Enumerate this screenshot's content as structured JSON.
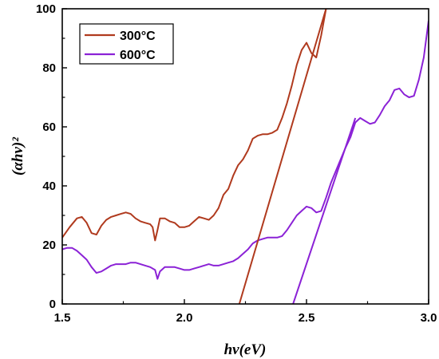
{
  "chart_data": {
    "type": "line",
    "xlabel": "hv(eV)",
    "ylabel": "(αhv)²",
    "xlim": [
      1.5,
      3.0
    ],
    "ylim": [
      0,
      100
    ],
    "x_ticks": [
      "1.5",
      "2.0",
      "2.5",
      "3.0"
    ],
    "y_ticks": [
      "0",
      "20",
      "40",
      "60",
      "80",
      "100"
    ],
    "legend_position": "top-left",
    "grid": false,
    "series": [
      {
        "name": "300°C",
        "color": "#b03a1e",
        "x": [
          1.5,
          1.53,
          1.56,
          1.58,
          1.6,
          1.62,
          1.64,
          1.66,
          1.68,
          1.7,
          1.72,
          1.74,
          1.76,
          1.78,
          1.8,
          1.82,
          1.84,
          1.86,
          1.87,
          1.88,
          1.89,
          1.9,
          1.92,
          1.94,
          1.96,
          1.98,
          2.0,
          2.02,
          2.04,
          2.06,
          2.08,
          2.1,
          2.12,
          2.14,
          2.16,
          2.18,
          2.2,
          2.22,
          2.24,
          2.26,
          2.28,
          2.3,
          2.32,
          2.34,
          2.36,
          2.38,
          2.4,
          2.42,
          2.44,
          2.46,
          2.48,
          2.5,
          2.52,
          2.54,
          2.56,
          2.58
        ],
        "y": [
          22.5,
          26.0,
          29.0,
          29.5,
          27.5,
          24.0,
          23.5,
          26.5,
          28.5,
          29.5,
          30.0,
          30.5,
          31.0,
          30.5,
          29.0,
          28.0,
          27.5,
          27.0,
          26.0,
          21.5,
          25.0,
          29.0,
          29.0,
          28.0,
          27.5,
          26.0,
          26.0,
          26.5,
          28.0,
          29.5,
          29.0,
          28.5,
          30.0,
          32.5,
          37.0,
          39.0,
          43.5,
          47.0,
          49.0,
          52.0,
          56.0,
          57.0,
          57.5,
          57.5,
          58.0,
          59.0,
          63.0,
          68.0,
          74.0,
          81.0,
          86.0,
          88.5,
          85.0,
          83.5,
          91.0,
          100.0
        ]
      },
      {
        "name": "600°C",
        "color": "#8b22d6",
        "x": [
          1.5,
          1.52,
          1.54,
          1.56,
          1.58,
          1.6,
          1.62,
          1.64,
          1.66,
          1.68,
          1.7,
          1.72,
          1.74,
          1.76,
          1.78,
          1.8,
          1.82,
          1.84,
          1.86,
          1.88,
          1.89,
          1.9,
          1.92,
          1.94,
          1.96,
          1.98,
          2.0,
          2.02,
          2.04,
          2.06,
          2.08,
          2.1,
          2.12,
          2.14,
          2.16,
          2.18,
          2.2,
          2.22,
          2.24,
          2.26,
          2.28,
          2.3,
          2.32,
          2.34,
          2.36,
          2.38,
          2.4,
          2.42,
          2.44,
          2.46,
          2.48,
          2.5,
          2.52,
          2.54,
          2.56,
          2.58,
          2.6,
          2.62,
          2.64,
          2.66,
          2.68,
          2.7,
          2.72,
          2.74,
          2.76,
          2.78,
          2.8,
          2.82,
          2.84,
          2.86,
          2.88,
          2.9,
          2.92,
          2.94,
          2.96,
          2.98,
          3.0
        ],
        "y": [
          18.5,
          19.0,
          19.0,
          18.0,
          16.5,
          15.0,
          12.5,
          10.5,
          11.0,
          12.0,
          13.0,
          13.5,
          13.5,
          13.5,
          14.0,
          14.0,
          13.5,
          13.0,
          12.5,
          11.5,
          8.5,
          11.0,
          12.5,
          12.5,
          12.5,
          12.0,
          11.5,
          11.5,
          12.0,
          12.5,
          13.0,
          13.5,
          13.0,
          13.0,
          13.5,
          14.0,
          14.5,
          15.5,
          17.0,
          18.5,
          20.5,
          21.5,
          22.0,
          22.5,
          22.5,
          22.5,
          23.0,
          25.0,
          27.5,
          30.0,
          31.5,
          33.0,
          32.5,
          31.0,
          31.5,
          36.0,
          41.0,
          45.0,
          49.0,
          53.0,
          56.5,
          61.5,
          63.0,
          62.0,
          61.0,
          61.5,
          64.0,
          67.0,
          69.0,
          72.5,
          73.0,
          71.0,
          70.0,
          70.5,
          76.0,
          83.5,
          96.0
        ]
      }
    ],
    "tangent_lines": [
      {
        "color": "#b03a1e",
        "x": [
          2.225,
          2.58
        ],
        "y": [
          0,
          100
        ]
      },
      {
        "color": "#8b22d6",
        "x": [
          2.445,
          2.7
        ],
        "y": [
          0,
          63
        ]
      }
    ]
  }
}
